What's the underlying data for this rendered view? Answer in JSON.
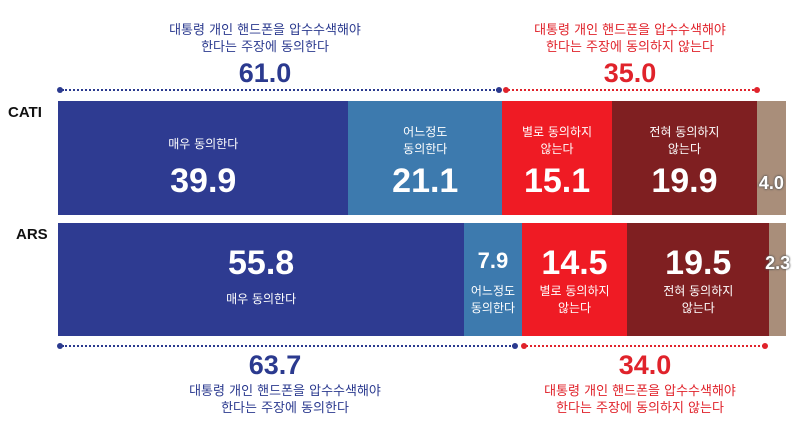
{
  "colors": {
    "very_agree": "#2e3b91",
    "somewhat_agree": "#3d7aae",
    "somewhat_disagree": "#ef1b24",
    "strongly_disagree": "#7f1f21",
    "no_opinion": "#a98e7a",
    "agree_text": "#2b3a8f",
    "disagree_text": "#e0232b"
  },
  "chart_data": {
    "type": "bar",
    "orientation": "horizontal-stacked-100",
    "categories": [
      "CATI",
      "ARS"
    ],
    "series": [
      {
        "name": "매우 동의한다",
        "values": [
          39.9,
          55.8
        ]
      },
      {
        "name": "어느정도 동의한다",
        "values": [
          21.1,
          7.9
        ]
      },
      {
        "name": "별로 동의하지 않는다",
        "values": [
          15.1,
          14.5
        ]
      },
      {
        "name": "전혀 동의하지 않는다",
        "values": [
          19.9,
          19.5
        ]
      },
      {
        "name": "",
        "values": [
          4.0,
          2.3
        ]
      }
    ],
    "agree_totals": [
      61.0,
      63.7
    ],
    "disagree_totals": [
      35.0,
      34.0
    ]
  },
  "captions": {
    "agree_line1": "대통령 개인 핸드폰을 압수수색해야",
    "agree_line2": "한다는 주장에 동의한다",
    "disagree_line1": "대통령 개인 핸드폰을 압수수색해야",
    "disagree_line2": "한다는 주장에 동의하지 않는다"
  },
  "labels": {
    "very_agree": "매우 동의한다",
    "somewhat_agree_1": "어느정도",
    "somewhat_agree_2": "동의한다",
    "somewhat_disagree_1": "별로 동의하지",
    "somewhat_disagree_2": "않는다",
    "strongly_disagree_1": "전혀 동의하지",
    "strongly_disagree_2": "않는다"
  },
  "values_text": {
    "cati_agree_total": "61.0",
    "cati_disagree_total": "35.0",
    "ars_agree_total": "63.7",
    "ars_disagree_total": "34.0",
    "cati_very_agree": "39.9",
    "cati_somewhat_agree": "21.1",
    "cati_somewhat_disagree": "15.1",
    "cati_strongly_disagree": "19.9",
    "cati_no_opinion": "4.0",
    "ars_very_agree": "55.8",
    "ars_somewhat_agree": "7.9",
    "ars_somewhat_disagree": "14.5",
    "ars_strongly_disagree": "19.5",
    "ars_no_opinion": "2.3"
  }
}
